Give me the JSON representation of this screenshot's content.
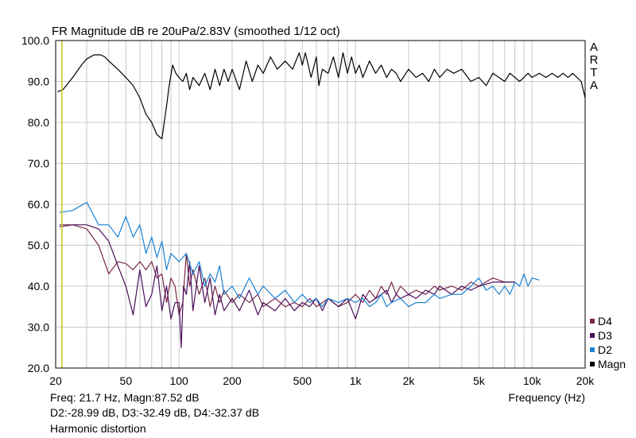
{
  "title": "FR Magnitude dB re 20uPa/2.83V (smoothed 1/12 oct)",
  "brand_letters": [
    "A",
    "R",
    "T",
    "A"
  ],
  "readout": {
    "line1": "Freq: 21.7 Hz, Magn:87.52 dB",
    "line2": "D2:-28.99 dB, D3:-32.49 dB, D4:-32.37 dB",
    "footer": "Harmonic distortion"
  },
  "cursor_freq_hz": 21.7,
  "colors": {
    "grid": "#c8c8c8",
    "cursor": "#d4c21a",
    "magn": "#000000",
    "d2": "#1a82d4",
    "d3": "#4a0f5a",
    "d4": "#7a2a48"
  },
  "chart_data": {
    "type": "line",
    "title": "FR Magnitude dB re 20uPa/2.83V (smoothed 1/12 oct)",
    "xlabel": "Frequency (Hz)",
    "ylabel": "",
    "x_scale": "log",
    "xlim": [
      20,
      20000
    ],
    "ylim": [
      20,
      100
    ],
    "x_ticks": [
      {
        "value": 20,
        "label": "20"
      },
      {
        "value": 50,
        "label": "50"
      },
      {
        "value": 100,
        "label": "100"
      },
      {
        "value": 200,
        "label": "200"
      },
      {
        "value": 500,
        "label": "500"
      },
      {
        "value": 1000,
        "label": "1k"
      },
      {
        "value": 2000,
        "label": "2k"
      },
      {
        "value": 5000,
        "label": "5k"
      },
      {
        "value": 10000,
        "label": "10k"
      },
      {
        "value": 20000,
        "label": "20k"
      }
    ],
    "y_ticks": [
      "20.0",
      "30.0",
      "40.0",
      "50.0",
      "60.0",
      "70.0",
      "80.0",
      "90.0",
      "100.0"
    ],
    "grid": true,
    "legend_position": "bottom-right",
    "series": [
      {
        "name": "D4",
        "color": "#7a2a48",
        "x": [
          21,
          25,
          30,
          35,
          40,
          45,
          50,
          55,
          60,
          65,
          70,
          75,
          80,
          85,
          90,
          95,
          100,
          105,
          110,
          115,
          120,
          130,
          140,
          150,
          160,
          170,
          180,
          200,
          220,
          250,
          280,
          300,
          350,
          400,
          450,
          500,
          550,
          600,
          650,
          700,
          800,
          900,
          1000,
          1100,
          1200,
          1300,
          1400,
          1500,
          1600,
          1700,
          1800,
          2000,
          2200,
          2500,
          2800,
          3000,
          3500,
          4000,
          4500,
          5000,
          6000,
          7000,
          8000
        ],
        "y": [
          55,
          55,
          54,
          50,
          43,
          46,
          45.5,
          44,
          46,
          44,
          46,
          42,
          43,
          36,
          42,
          40,
          33,
          36,
          48,
          40,
          44,
          38,
          42,
          35,
          40,
          36,
          39,
          36,
          38,
          36,
          38,
          35,
          37,
          35,
          36,
          35,
          37,
          35,
          36,
          37,
          35,
          36,
          38,
          36,
          39,
          37,
          40,
          38,
          41,
          38,
          40,
          38,
          39,
          38,
          40,
          39,
          40,
          39,
          41,
          40,
          42,
          41,
          41
        ]
      },
      {
        "name": "D3",
        "color": "#4a0f5a",
        "x": [
          21,
          25,
          30,
          35,
          40,
          45,
          50,
          55,
          60,
          65,
          70,
          75,
          80,
          85,
          90,
          95,
          100,
          103,
          106,
          110,
          115,
          120,
          130,
          140,
          150,
          160,
          170,
          180,
          200,
          220,
          250,
          280,
          300,
          350,
          400,
          450,
          500,
          550,
          600,
          650,
          700,
          800,
          900,
          1000,
          1100,
          1200,
          1300,
          1400,
          1500,
          1600,
          1700,
          1800,
          2000,
          2200,
          2500,
          2800,
          3000,
          3500,
          4000,
          4500,
          5000,
          6000,
          7000,
          8000
        ],
        "y": [
          54.5,
          55,
          55,
          54,
          51,
          45,
          40,
          33,
          44,
          35,
          38,
          45,
          34,
          40,
          32,
          36,
          36,
          25,
          40,
          38,
          46,
          34,
          45,
          36,
          42,
          33,
          38,
          34,
          37,
          34,
          39,
          33,
          36,
          34,
          37,
          34,
          36,
          35,
          37,
          34,
          37,
          35,
          37,
          32,
          38,
          36,
          37,
          38,
          39,
          36,
          38,
          37,
          38,
          37,
          39,
          38,
          40,
          38,
          40,
          39,
          40,
          41,
          41,
          41
        ]
      },
      {
        "name": "D2",
        "color": "#1a82d4",
        "x": [
          21,
          25,
          30,
          35,
          40,
          45,
          50,
          55,
          60,
          65,
          70,
          75,
          80,
          85,
          90,
          100,
          110,
          120,
          130,
          140,
          150,
          160,
          170,
          180,
          200,
          220,
          250,
          280,
          300,
          350,
          400,
          450,
          500,
          550,
          600,
          650,
          700,
          800,
          900,
          1000,
          1100,
          1200,
          1300,
          1400,
          1500,
          1600,
          1800,
          2000,
          2200,
          2500,
          2800,
          3000,
          3500,
          4000,
          4500,
          5000,
          5500,
          6000,
          6500,
          7000,
          7500,
          8000,
          8500,
          9000,
          9500,
          10000,
          11000
        ],
        "y": [
          58,
          58.5,
          60.5,
          55,
          55,
          52,
          57,
          52,
          55,
          48,
          52,
          47,
          51,
          44,
          48,
          46,
          48,
          43,
          46,
          40,
          43,
          41,
          45,
          38,
          40,
          37,
          42,
          38,
          40,
          37,
          39,
          36,
          38,
          36,
          37,
          35,
          37,
          36,
          37,
          36,
          37,
          35,
          36,
          38,
          35,
          36,
          37,
          35,
          36,
          36,
          38,
          37,
          38,
          38,
          40,
          42,
          39,
          40,
          38,
          40,
          38,
          41,
          40,
          43,
          40,
          42,
          41.5
        ]
      },
      {
        "name": "Magn",
        "color": "#000000",
        "x": [
          20.5,
          22,
          25,
          28,
          30,
          33,
          36,
          38,
          40,
          45,
          50,
          55,
          60,
          65,
          70,
          75,
          80,
          85,
          88,
          92,
          96,
          100,
          105,
          110,
          115,
          120,
          130,
          140,
          150,
          160,
          170,
          180,
          190,
          200,
          220,
          240,
          260,
          280,
          300,
          330,
          360,
          400,
          440,
          480,
          500,
          520,
          560,
          600,
          620,
          650,
          700,
          750,
          800,
          850,
          900,
          950,
          1000,
          1050,
          1100,
          1150,
          1200,
          1300,
          1400,
          1500,
          1600,
          1700,
          1800,
          2000,
          2200,
          2400,
          2600,
          2800,
          3000,
          3300,
          3600,
          4000,
          4500,
          5000,
          5500,
          6000,
          6500,
          7000,
          7500,
          8000,
          8500,
          9000,
          9500,
          10000,
          11000,
          12000,
          13000,
          14000,
          15000,
          16000,
          17000,
          18000,
          19000,
          20000
        ],
        "y": [
          87.5,
          88,
          91,
          94,
          95.5,
          96.5,
          96.5,
          96,
          95,
          93,
          91,
          89,
          86,
          82,
          80,
          77,
          76,
          84,
          89,
          94,
          92,
          91,
          90,
          92,
          88,
          91,
          89,
          92,
          88,
          93,
          89,
          93,
          90,
          93,
          88,
          95,
          90,
          94,
          92,
          96,
          93,
          95,
          93,
          97,
          94,
          97,
          91,
          96,
          89,
          93,
          92,
          96,
          91,
          97,
          92,
          96,
          92,
          94,
          91,
          93,
          95,
          92,
          94,
          91,
          93,
          92,
          90,
          93,
          91,
          92,
          90,
          93,
          91,
          93,
          92,
          93,
          90,
          91,
          89,
          92,
          91,
          90,
          92,
          91,
          90,
          91,
          92,
          91,
          92,
          91,
          92,
          91,
          92,
          91,
          92,
          91,
          90,
          86
        ]
      }
    ]
  }
}
